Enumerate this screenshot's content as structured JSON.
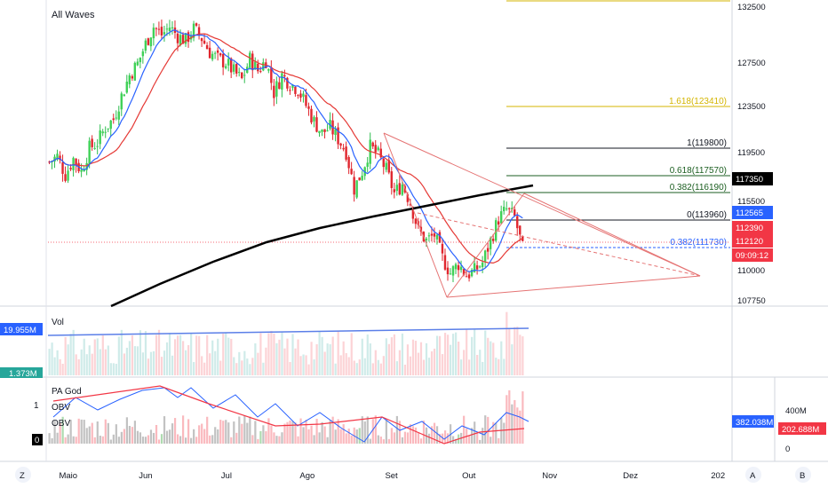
{
  "main": {
    "title": "All Waves",
    "price_ticks": [
      "132500",
      "127500",
      "123500",
      "119500",
      "115500",
      "110000",
      "107750"
    ],
    "fib": {
      "upper": [
        {
          "label": "1.618(123410)",
          "price": 123410,
          "color": "#d4b500"
        },
        {
          "label": "1(119800)",
          "price": 119800,
          "color": "#131722"
        },
        {
          "label": "0.618(117570)",
          "price": 117570,
          "color": "#1b5e20"
        },
        {
          "label": "0.382(116190)",
          "price": 116190,
          "color": "#1b5e20"
        },
        {
          "label": "0(113960)",
          "price": 113960,
          "color": "#131722"
        },
        {
          "label": "0.382(111730)",
          "price": 111730,
          "color": "#2962ff"
        }
      ],
      "top_line_price": 132800
    },
    "tags": [
      {
        "text": "117350",
        "price": 117350,
        "bg": "#000000"
      },
      {
        "text": "112565",
        "price": 113960,
        "bg": "#2962ff"
      },
      {
        "text": "112390",
        "price": 112700,
        "bg": "#f23645"
      },
      {
        "text": "112120",
        "price": 111980,
        "bg": "#f23645"
      },
      {
        "text": "09:09:12",
        "price": 111000,
        "bg": "#f23645"
      }
    ]
  },
  "volume": {
    "title": "Vol",
    "tags": [
      {
        "text": "19.955M",
        "bg": "#2962ff"
      },
      {
        "text": "1.373M",
        "bg": "#26a69a"
      }
    ]
  },
  "indicator": {
    "title": "PA God",
    "legend": [
      "OBV",
      "OBV"
    ],
    "scale_left": [
      "1",
      "0"
    ],
    "tag_obv": "382.038M",
    "right_scale": {
      "top": "400M",
      "tag": "202.688M",
      "bottom": "0"
    }
  },
  "time_axis": {
    "labels": [
      {
        "text": "Maio",
        "t": 0.03
      },
      {
        "text": "Jun",
        "t": 0.145
      },
      {
        "text": "Jul",
        "t": 0.265
      },
      {
        "text": "Ago",
        "t": 0.385
      },
      {
        "text": "Set",
        "t": 0.51
      },
      {
        "text": "Out",
        "t": 0.625
      },
      {
        "text": "Nov",
        "t": 0.745
      },
      {
        "text": "Dez",
        "t": 0.865
      },
      {
        "text": "202",
        "t": 0.995
      }
    ]
  },
  "bottom_bar": {
    "left_btn": "Z",
    "a_btn": "A",
    "b_btn": "B"
  },
  "chart_data": {
    "type": "candlestick",
    "title": "All Waves",
    "ylim": [
      107000,
      133000
    ],
    "price_ticks": [
      132500,
      127500,
      123500,
      119500,
      115500,
      110000,
      107750
    ],
    "x_labels": [
      "Maio",
      "Jun",
      "Jul",
      "Ago",
      "Set",
      "Out",
      "Nov",
      "Dez",
      "202"
    ],
    "close_path": [
      [
        0,
        119300
      ],
      [
        3,
        119800
      ],
      [
        6,
        118200
      ],
      [
        9,
        119600
      ],
      [
        12,
        118500
      ],
      [
        15,
        120500
      ],
      [
        18,
        121000
      ],
      [
        21,
        122300
      ],
      [
        24,
        123000
      ],
      [
        27,
        125000
      ],
      [
        30,
        126800
      ],
      [
        33,
        127800
      ],
      [
        36,
        129500
      ],
      [
        39,
        131000
      ],
      [
        42,
        130300
      ],
      [
        45,
        131000
      ],
      [
        48,
        130200
      ],
      [
        51,
        129800
      ],
      [
        54,
        130800
      ],
      [
        57,
        130000
      ],
      [
        60,
        128800
      ],
      [
        63,
        128200
      ],
      [
        66,
        127900
      ],
      [
        69,
        127100
      ],
      [
        72,
        126400
      ],
      [
        75,
        128200
      ],
      [
        78,
        127200
      ],
      [
        81,
        128100
      ],
      [
        84,
        125300
      ],
      [
        87,
        126800
      ],
      [
        90,
        126100
      ],
      [
        93,
        125600
      ],
      [
        96,
        124200
      ],
      [
        99,
        122800
      ],
      [
        102,
        121800
      ],
      [
        105,
        122300
      ],
      [
        108,
        121300
      ],
      [
        111,
        120200
      ],
      [
        114,
        117000
      ],
      [
        117,
        118500
      ],
      [
        120,
        120600
      ],
      [
        123,
        119900
      ],
      [
        126,
        118600
      ],
      [
        129,
        116600
      ],
      [
        132,
        117400
      ],
      [
        135,
        115800
      ],
      [
        138,
        113400
      ],
      [
        141,
        112500
      ],
      [
        144,
        113000
      ],
      [
        147,
        111000
      ],
      [
        150,
        109700
      ],
      [
        153,
        110500
      ],
      [
        156,
        109500
      ],
      [
        159,
        109900
      ],
      [
        162,
        110600
      ],
      [
        165,
        112500
      ],
      [
        168,
        114400
      ],
      [
        171,
        115200
      ],
      [
        174,
        114500
      ],
      [
        177,
        111800
      ]
    ],
    "candle_count": 180
  }
}
